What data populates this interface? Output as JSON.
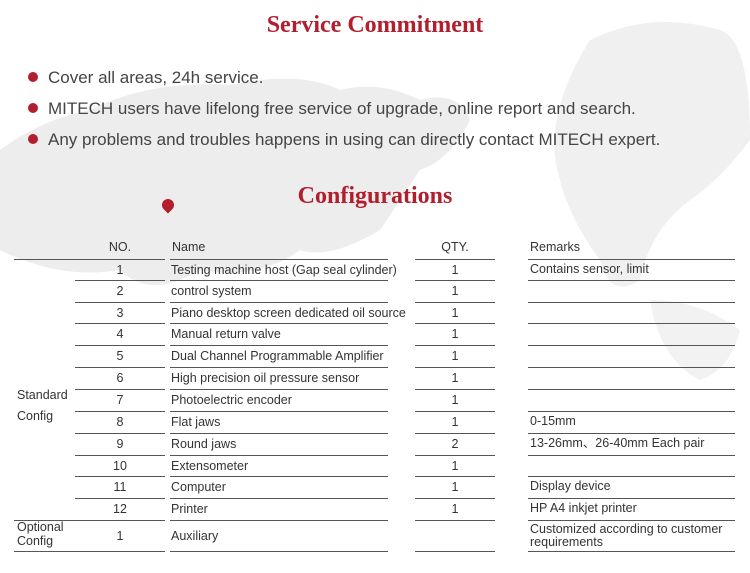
{
  "service": {
    "title": "Service Commitment",
    "bullets": [
      "Cover all areas, 24h service.",
      "MITECH users have lifelong free service of upgrade, online report and search.",
      "Any problems and troubles happens in using can directly contact MITECH expert."
    ]
  },
  "config": {
    "title": "Configurations",
    "headers": {
      "no": "NO.",
      "name": "Name",
      "qty": "QTY.",
      "remarks": "Remarks"
    },
    "groups": {
      "standard": "Standard\nConfig",
      "optional": "Optional\nConfig"
    },
    "rows": [
      {
        "no": "1",
        "name": "Testing machine host (Gap seal cylinder)",
        "qty": "1",
        "remarks": "Contains sensor, limit"
      },
      {
        "no": "2",
        "name": "control system",
        "qty": "1",
        "remarks": ""
      },
      {
        "no": "3",
        "name": "Piano desktop screen dedicated oil source",
        "qty": "1",
        "remarks": ""
      },
      {
        "no": "4",
        "name": "Manual return valve",
        "qty": "1",
        "remarks": ""
      },
      {
        "no": "5",
        "name": "Dual Channel Programmable Amplifier",
        "qty": "1",
        "remarks": ""
      },
      {
        "no": "6",
        "name": "High precision oil pressure sensor",
        "qty": "1",
        "remarks": ""
      },
      {
        "no": "7",
        "name": "Photoelectric encoder",
        "qty": "1",
        "remarks": ""
      },
      {
        "no": "8",
        "name": "Flat jaws",
        "qty": "1",
        "remarks": "0-15mm"
      },
      {
        "no": "9",
        "name": "Round jaws",
        "qty": "2",
        "remarks": "13-26mm、26-40mm Each pair"
      },
      {
        "no": "10",
        "name": "Extensometer",
        "qty": "1",
        "remarks": ""
      },
      {
        "no": "11",
        "name": "Computer",
        "qty": "1",
        "remarks": "Display device"
      },
      {
        "no": "12",
        "name": "Printer",
        "qty": "1",
        "remarks": "HP A4 inkjet printer"
      },
      {
        "no": "1",
        "name": "Auxiliary",
        "qty": "",
        "remarks": "Customized according to customer\nrequirements"
      }
    ]
  },
  "colors": {
    "accent": "#b21e2d",
    "map": "#ececec"
  },
  "icons": {
    "pin": "map-pin-icon"
  }
}
